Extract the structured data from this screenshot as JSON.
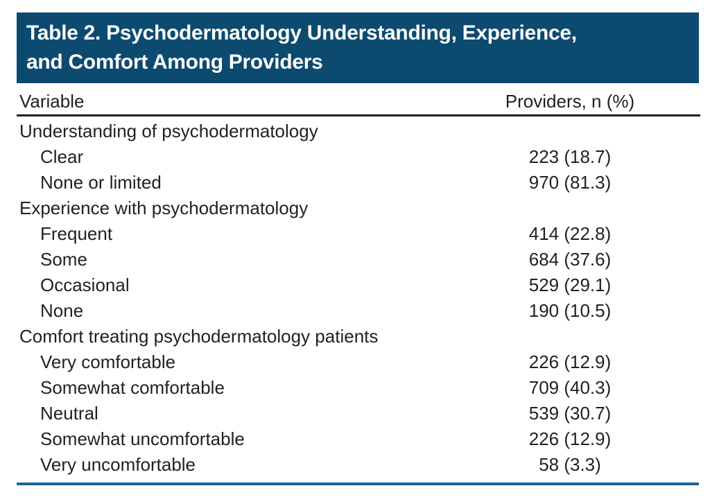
{
  "figure": {
    "title_line1": "Table 2. Psychodermatology Understanding, Experience,",
    "title_line2": "and Comfort Among Providers"
  },
  "columns": {
    "variable": "Variable",
    "providers": "Providers, n (%)"
  },
  "table": {
    "rows": [
      {
        "label": "Understanding of psychodermatology",
        "value": "",
        "section": true
      },
      {
        "label": "Clear",
        "value": "223 (18.7)",
        "section": false
      },
      {
        "label": "None or limited",
        "value": "970 (81.3)",
        "section": false
      },
      {
        "label": "Experience with psychodermatology",
        "value": "",
        "section": true
      },
      {
        "label": "Frequent",
        "value": "414 (22.8)",
        "section": false
      },
      {
        "label": "Some",
        "value": "684 (37.6)",
        "section": false
      },
      {
        "label": "Occasional",
        "value": "529 (29.1)",
        "section": false
      },
      {
        "label": "None",
        "value": "190 (10.5)",
        "section": false
      },
      {
        "label": "Comfort treating psychodermatology patients",
        "value": "",
        "section": true
      },
      {
        "label": "Very comfortable",
        "value": "226 (12.9)",
        "section": false
      },
      {
        "label": "Somewhat comfortable",
        "value": "709 (40.3)",
        "section": false
      },
      {
        "label": "Neutral",
        "value": "539 (30.7)",
        "section": false
      },
      {
        "label": "Somewhat uncomfortable",
        "value": "226 (12.9)",
        "section": false
      },
      {
        "label": "Very uncomfortable",
        "value": "58 (3.3)",
        "section": false
      }
    ]
  },
  "colors": {
    "title_bar_bg": "#0d4a6f",
    "title_text": "#ffffff",
    "body_text": "#231f20",
    "header_rule": "#231f20",
    "bottom_rule": "#1b6399"
  }
}
